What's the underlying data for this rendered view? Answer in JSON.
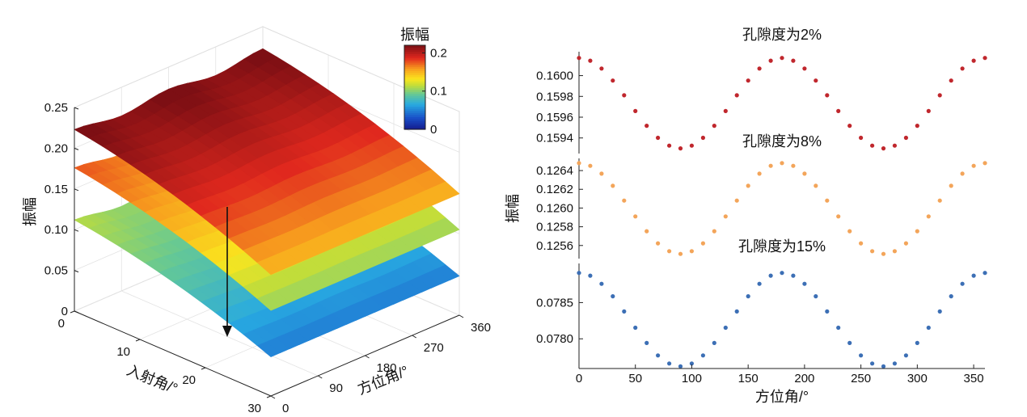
{
  "chart_data": [
    {
      "type": "surface3d",
      "title": "",
      "zlabel": "振幅",
      "xlabel": "入射角/°",
      "ylabel": "方位角/°",
      "incidence_range": [
        0,
        30
      ],
      "azimuth_range": [
        0,
        360
      ],
      "zlim": [
        0,
        0.25
      ],
      "incidence_ticks": [
        "0",
        "10",
        "20",
        "30"
      ],
      "azimuth_ticks": [
        "0",
        "90",
        "180",
        "270",
        "360"
      ],
      "z_ticks": [
        "0",
        "0.05",
        "0.10",
        "0.15",
        "0.20",
        "0.25"
      ],
      "colorbar": {
        "title": "振幅",
        "ticks": [
          "0",
          "0.1",
          "0.2"
        ],
        "range": [
          0,
          0.22
        ]
      },
      "surfaces": [
        {
          "name": "孔隙度为2%",
          "value_at_incidence_0": 0.219,
          "value_at_incidence_30": 0.149
        },
        {
          "name": "孔隙度为8%",
          "value_at_incidence_0": 0.172,
          "value_at_incidence_30": 0.105
        },
        {
          "name": "孔隙度为15%",
          "value_at_incidence_0": 0.108,
          "value_at_incidence_30": 0.048
        }
      ],
      "annotation": "downward arrow: porosity increases, amplitude decreases"
    },
    {
      "type": "scatter",
      "xlabel": "方位角/°",
      "ylabel": "振幅",
      "xlim": [
        0,
        360
      ],
      "x_ticks": [
        "0",
        "50",
        "100",
        "150",
        "200",
        "250",
        "300",
        "350"
      ],
      "x": [
        0,
        10,
        20,
        30,
        40,
        50,
        60,
        70,
        80,
        90,
        100,
        110,
        120,
        130,
        140,
        150,
        160,
        170,
        180,
        190,
        200,
        210,
        220,
        230,
        240,
        250,
        260,
        270,
        280,
        290,
        300,
        310,
        320,
        330,
        340,
        350,
        360
      ],
      "panels": [
        {
          "title": "孔隙度为2%",
          "color": "#c0272d",
          "ylim": [
            0.15925,
            0.16023
          ],
          "y_ticks": [
            "0.1594",
            "0.1596",
            "0.1598",
            "0.1600"
          ],
          "y_tick_values": [
            0.1594,
            0.1596,
            0.1598,
            0.16
          ],
          "min": 0.1593,
          "max": 0.16017
        },
        {
          "title": "孔隙度为8%",
          "color": "#f3a55a",
          "ylim": [
            0.12546,
            0.12653
          ],
          "y_ticks": [
            "0.1256",
            "0.1258",
            "0.1260",
            "0.1262",
            "0.1264"
          ],
          "y_tick_values": [
            0.1256,
            0.1258,
            0.126,
            0.1262,
            0.1264
          ],
          "min": 0.12551,
          "max": 0.12648
        },
        {
          "title": "孔隙度为15%",
          "color": "#3c6fb5",
          "ylim": [
            0.07759,
            0.07904
          ],
          "y_ticks": [
            "0.0780",
            "0.0785"
          ],
          "y_tick_values": [
            0.078,
            0.0785
          ],
          "min": 0.07762,
          "max": 0.07891
        }
      ]
    }
  ]
}
